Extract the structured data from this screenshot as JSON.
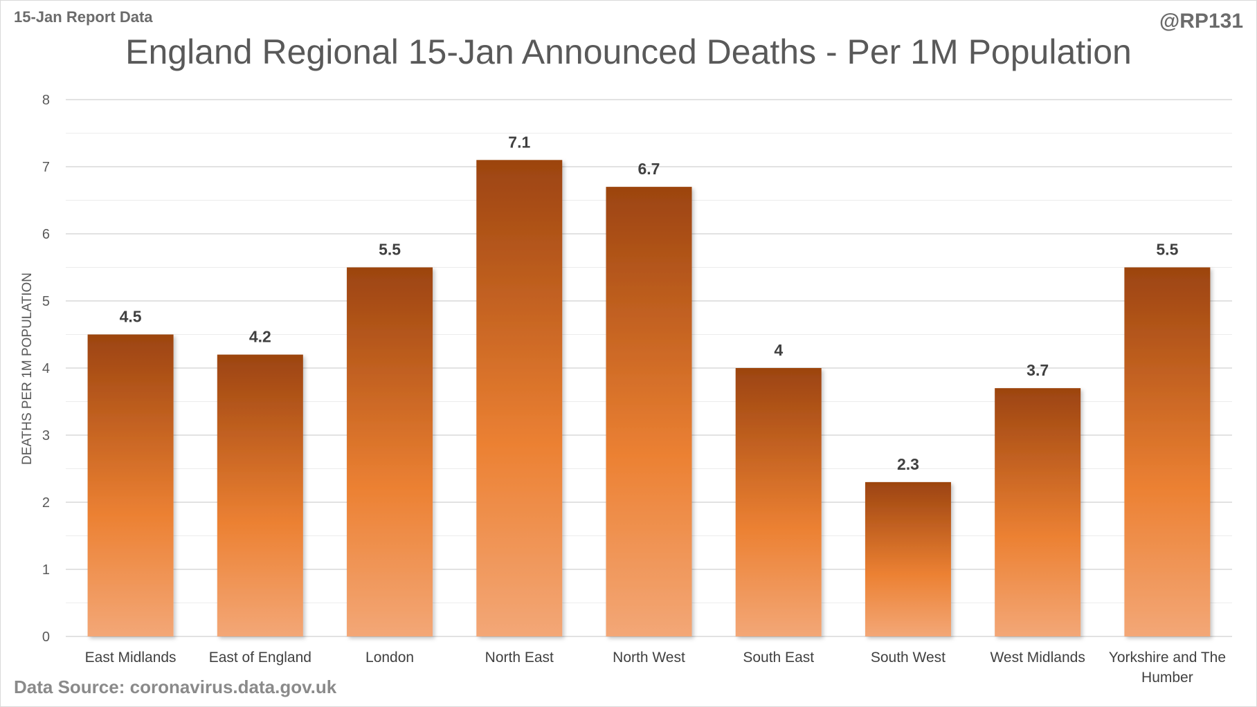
{
  "header": {
    "report_label": "15-Jan Report Data",
    "handle": "@RP131",
    "source": "Data Source: coronavirus.data.gov.uk"
  },
  "chart_data": {
    "type": "bar",
    "title": "England Regional 15-Jan Announced Deaths - Per 1M Population",
    "xlabel": "",
    "ylabel": "DEATHS PER 1M POPULATION",
    "categories": [
      "East Midlands",
      "East of England",
      "London",
      "North East",
      "North West",
      "South East",
      "South West",
      "West Midlands",
      "Yorkshire and The Humber"
    ],
    "values": [
      4.5,
      4.2,
      5.5,
      7.1,
      6.7,
      4,
      2.3,
      3.7,
      5.5
    ],
    "value_labels": [
      "4.5",
      "4.2",
      "5.5",
      "7.1",
      "6.7",
      "4",
      "2.3",
      "3.7",
      "5.5"
    ],
    "ylim": [
      0,
      8
    ],
    "yticks": [
      0,
      1,
      2,
      3,
      4,
      5,
      6,
      7,
      8
    ],
    "grid": true,
    "legend": "none",
    "colors": {
      "bar_top": "#9c4410",
      "bar_mid": "#ec8133",
      "bar_bottom": "#f3a777",
      "grid": "#d9d9d9"
    }
  }
}
